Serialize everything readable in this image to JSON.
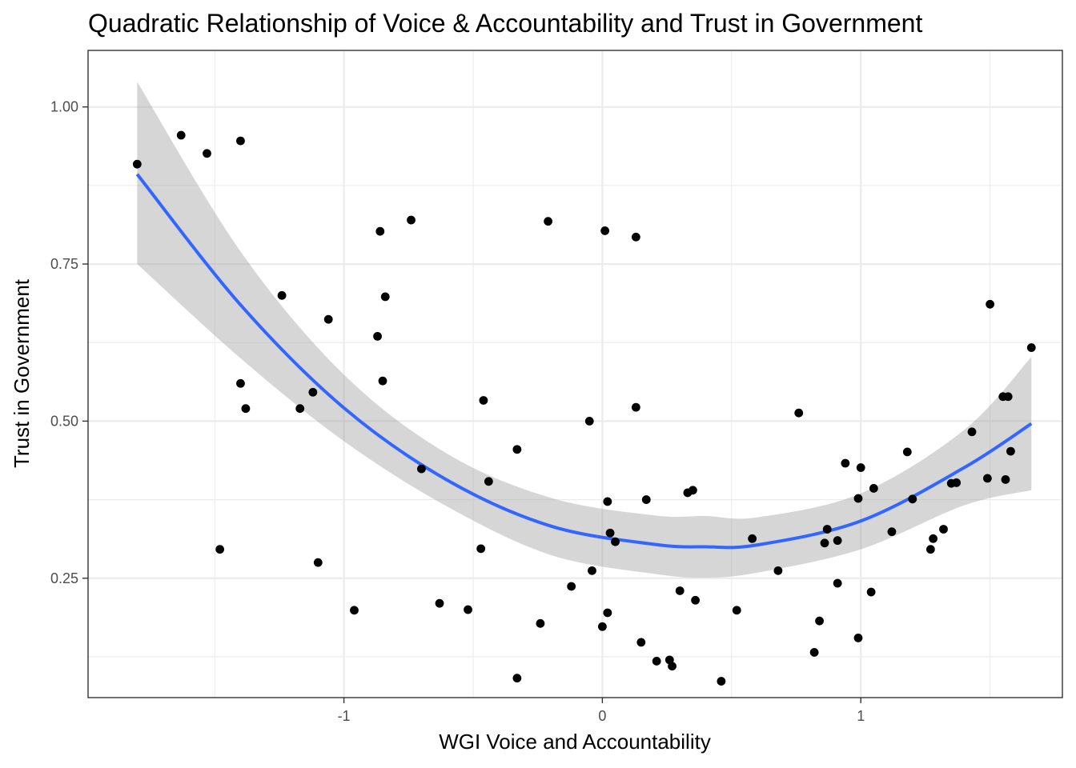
{
  "chart_data": {
    "type": "scatter",
    "title": "Quadratic Relationship of Voice & Accountability and Trust in Government",
    "xlabel": "WGI Voice and Accountability",
    "ylabel": "Trust in Government",
    "xlim": [
      -1.99,
      1.78
    ],
    "ylim": [
      0.06,
      1.09
    ],
    "x_ticks": [
      -1,
      0,
      1
    ],
    "x_tick_labels": [
      "-1",
      "0",
      "1"
    ],
    "y_ticks": [
      0.25,
      0.5,
      0.75,
      1.0
    ],
    "y_tick_labels": [
      "0.25",
      "0.50",
      "0.75",
      "1.00"
    ],
    "grid": true,
    "theme": "black-and-white",
    "colors": {
      "points": "#000000",
      "fit_line": "#3366FF",
      "ribbon": "#999999",
      "grid": "#ebebeb",
      "panel_border": "#333333"
    },
    "points": [
      [
        -1.8,
        0.909
      ],
      [
        -1.63,
        0.955
      ],
      [
        -1.53,
        0.926
      ],
      [
        -1.4,
        0.946
      ],
      [
        -1.4,
        0.56
      ],
      [
        -1.38,
        0.52
      ],
      [
        -1.48,
        0.296
      ],
      [
        -1.24,
        0.7
      ],
      [
        -1.17,
        0.52
      ],
      [
        -1.12,
        0.546
      ],
      [
        -1.1,
        0.275
      ],
      [
        -1.06,
        0.662
      ],
      [
        -0.96,
        0.199
      ],
      [
        -0.86,
        0.802
      ],
      [
        -0.87,
        0.635
      ],
      [
        -0.85,
        0.564
      ],
      [
        -0.84,
        0.698
      ],
      [
        -0.74,
        0.82
      ],
      [
        -0.7,
        0.424
      ],
      [
        -0.63,
        0.21
      ],
      [
        -0.52,
        0.2
      ],
      [
        -0.46,
        0.533
      ],
      [
        -0.44,
        0.404
      ],
      [
        -0.47,
        0.297
      ],
      [
        -0.33,
        0.455
      ],
      [
        -0.33,
        0.091
      ],
      [
        -0.24,
        0.178
      ],
      [
        -0.21,
        0.818
      ],
      [
        -0.12,
        0.237
      ],
      [
        -0.05,
        0.5
      ],
      [
        -0.04,
        0.262
      ],
      [
        0.01,
        0.803
      ],
      [
        0.02,
        0.372
      ],
      [
        0.03,
        0.322
      ],
      [
        0.05,
        0.308
      ],
      [
        0.0,
        0.173
      ],
      [
        0.02,
        0.195
      ],
      [
        0.13,
        0.793
      ],
      [
        0.13,
        0.522
      ],
      [
        0.17,
        0.375
      ],
      [
        0.15,
        0.148
      ],
      [
        0.21,
        0.118
      ],
      [
        0.26,
        0.12
      ],
      [
        0.27,
        0.11
      ],
      [
        0.3,
        0.23
      ],
      [
        0.33,
        0.386
      ],
      [
        0.35,
        0.39
      ],
      [
        0.36,
        0.215
      ],
      [
        0.46,
        0.086
      ],
      [
        0.52,
        0.199
      ],
      [
        0.58,
        0.313
      ],
      [
        0.68,
        0.262
      ],
      [
        0.76,
        0.513
      ],
      [
        0.82,
        0.132
      ],
      [
        0.84,
        0.182
      ],
      [
        0.86,
        0.306
      ],
      [
        0.87,
        0.328
      ],
      [
        0.91,
        0.31
      ],
      [
        0.91,
        0.242
      ],
      [
        0.94,
        0.433
      ],
      [
        0.99,
        0.377
      ],
      [
        0.99,
        0.155
      ],
      [
        1.0,
        0.426
      ],
      [
        1.05,
        0.393
      ],
      [
        1.04,
        0.228
      ],
      [
        1.12,
        0.324
      ],
      [
        1.18,
        0.451
      ],
      [
        1.2,
        0.376
      ],
      [
        1.27,
        0.296
      ],
      [
        1.28,
        0.313
      ],
      [
        1.32,
        0.328
      ],
      [
        1.35,
        0.401
      ],
      [
        1.37,
        0.402
      ],
      [
        1.43,
        0.483
      ],
      [
        1.49,
        0.409
      ],
      [
        1.5,
        0.686
      ],
      [
        1.55,
        0.539
      ],
      [
        1.57,
        0.539
      ],
      [
        1.56,
        0.407
      ],
      [
        1.58,
        0.452
      ],
      [
        1.66,
        0.617
      ]
    ],
    "fit": {
      "method": "quadratic",
      "x": [
        -1.8,
        -1.4,
        -1.0,
        -0.6,
        -0.2,
        0.2,
        0.4,
        0.6,
        1.0,
        1.4,
        1.66
      ],
      "y": [
        0.893,
        0.685,
        0.521,
        0.406,
        0.333,
        0.304,
        0.3,
        0.303,
        0.341,
        0.426,
        0.496
      ],
      "lower": [
        0.75,
        0.6,
        0.468,
        0.364,
        0.287,
        0.257,
        0.251,
        0.259,
        0.296,
        0.366,
        0.39
      ],
      "upper": [
        1.04,
        0.77,
        0.574,
        0.448,
        0.378,
        0.35,
        0.349,
        0.347,
        0.385,
        0.486,
        0.602
      ]
    }
  }
}
